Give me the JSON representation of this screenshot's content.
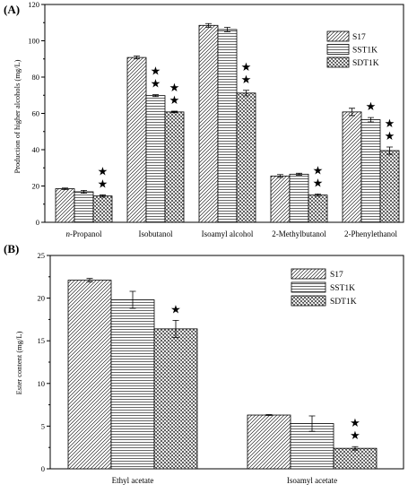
{
  "colors": {
    "frame": "#000000",
    "bar_fill": "#ffffff",
    "background": "#ffffff"
  },
  "chart_data": [
    {
      "panel": "(A)",
      "type": "bar",
      "ylabel": "Production of higher alcohols (mg/L)",
      "xlabel": "",
      "ylim": [
        0,
        120
      ],
      "yticks": [
        0,
        20,
        40,
        60,
        80,
        100,
        120
      ],
      "categories": [
        "n-Propanol",
        "Isobutanol",
        "Isoamyl alcohol",
        "2-Methylbutanol",
        "2-Phenylethanol"
      ],
      "category_display": [
        {
          "italic": "n",
          "rest": "-Propanol"
        },
        {
          "italic": "",
          "rest": "Isobutanol"
        },
        {
          "italic": "",
          "rest": "Isoamyl alcohol"
        },
        {
          "italic": "",
          "rest": "2-Methylbutanol"
        },
        {
          "italic": "",
          "rest": "2-Phenylethanol"
        }
      ],
      "series": [
        {
          "name": "S17",
          "pattern": "diag",
          "values": [
            18.5,
            90.8,
            108.5,
            25.5,
            60.8
          ],
          "errors": [
            0.4,
            0.8,
            1.0,
            0.8,
            2.0
          ],
          "stars": [
            0,
            0,
            0,
            0,
            0
          ]
        },
        {
          "name": "SST1K",
          "pattern": "horiz",
          "values": [
            16.8,
            69.8,
            106.2,
            26.5,
            56.5
          ],
          "errors": [
            0.8,
            0.5,
            1.2,
            0.5,
            1.2
          ],
          "stars": [
            0,
            2,
            0,
            0,
            1
          ]
        },
        {
          "name": "SDT1K",
          "pattern": "cross",
          "values": [
            14.5,
            60.8,
            71.2,
            15.0,
            39.5
          ],
          "errors": [
            0.6,
            0.4,
            1.5,
            0.6,
            2.0
          ],
          "stars": [
            2,
            2,
            2,
            2,
            2
          ]
        }
      ],
      "legend_position": "top-right"
    },
    {
      "panel": "(B)",
      "type": "bar",
      "ylabel": "Ester content (mg/L)",
      "xlabel": "",
      "ylim": [
        0,
        25
      ],
      "yticks": [
        0,
        5,
        10,
        15,
        20,
        25
      ],
      "categories": [
        "Ethyl acetate",
        "Isoamyl acetate"
      ],
      "category_display": [
        {
          "italic": "",
          "rest": "Ethyl acetate"
        },
        {
          "italic": "",
          "rest": "Isoamyl acetate"
        }
      ],
      "series": [
        {
          "name": "S17",
          "pattern": "diag",
          "values": [
            22.1,
            6.3
          ],
          "errors": [
            0.2,
            0.05
          ],
          "stars": [
            0,
            0
          ]
        },
        {
          "name": "SST1K",
          "pattern": "horiz",
          "values": [
            19.8,
            5.3
          ],
          "errors": [
            1.0,
            0.9
          ],
          "stars": [
            0,
            0
          ]
        },
        {
          "name": "SDT1K",
          "pattern": "cross",
          "values": [
            16.4,
            2.4
          ],
          "errors": [
            1.0,
            0.2
          ],
          "stars": [
            1,
            2
          ]
        }
      ],
      "legend_position": "top-right"
    }
  ]
}
